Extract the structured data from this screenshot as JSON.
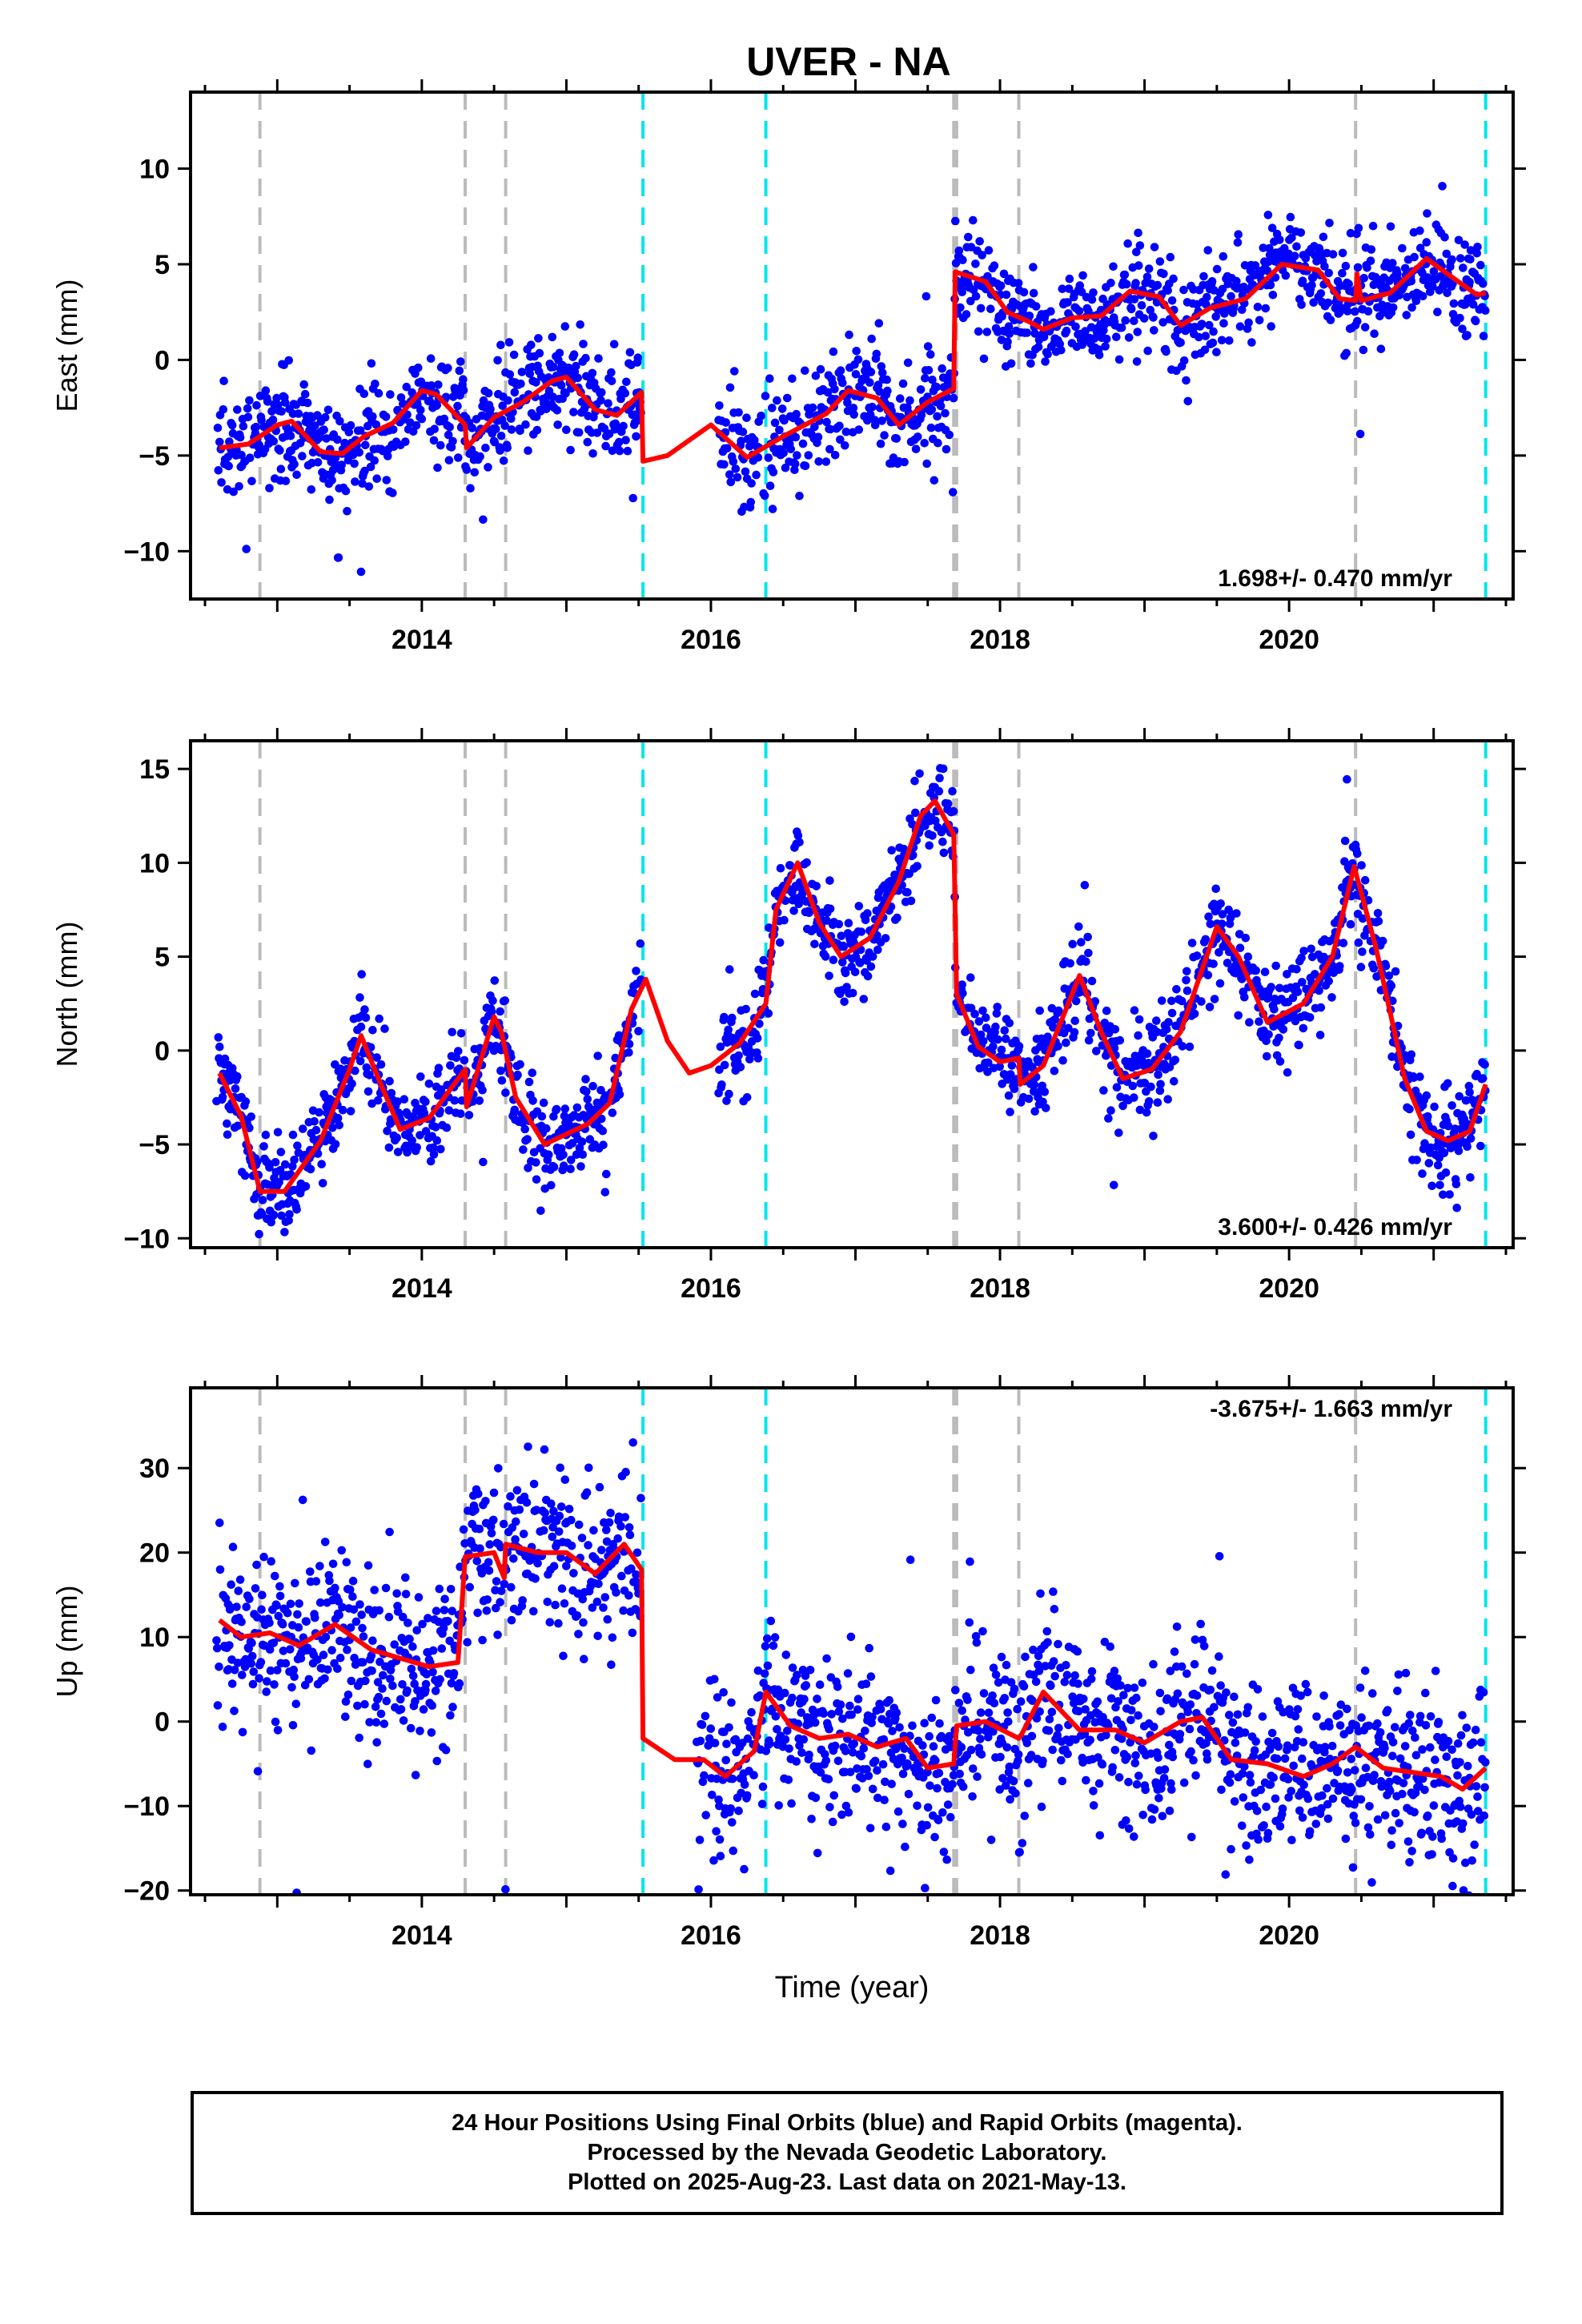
{
  "title": "UVER - NA",
  "colors": {
    "data": "#0000ff",
    "model": "#ff0000",
    "gray_line": "#bbbbbb",
    "cyan_line": "#00e5ee",
    "frame": "#000000"
  },
  "footer": {
    "line1": "24 Hour Positions Using Final Orbits (blue) and Rapid Orbits (magenta).",
    "line2": "Processed by the Nevada Geodetic Laboratory.",
    "line3": "Plotted on 2025-Aug-23. Last data on 2021-May-13."
  },
  "chart_data": [
    {
      "type": "scatter",
      "title": "UVER - NA",
      "xlabel": "",
      "ylabel": "East (mm)",
      "xlim": [
        2012.4,
        2021.55
      ],
      "ylim": [
        -12.5,
        14
      ],
      "xticks": [
        2014,
        2016,
        2018,
        2020
      ],
      "yticks": [
        -10,
        -5,
        0,
        5,
        10
      ],
      "rate_label": "1.698+/- 0.470 mm/yr",
      "rate_position": "bottom-right",
      "data_gap": [
        2015.52,
        2016.05
      ],
      "gray_lines": [
        2012.88,
        2014.3,
        2014.58,
        2017.68,
        2017.7,
        2018.13,
        2020.46
      ],
      "cyan_lines": [
        2015.53,
        2016.38,
        2021.36
      ],
      "model": [
        [
          2012.6,
          -4.6
        ],
        [
          2012.8,
          -4.4
        ],
        [
          2013.0,
          -3.4
        ],
        [
          2013.1,
          -3.2
        ],
        [
          2013.3,
          -4.8
        ],
        [
          2013.45,
          -4.9
        ],
        [
          2013.6,
          -4.0
        ],
        [
          2013.8,
          -3.3
        ],
        [
          2014.0,
          -1.6
        ],
        [
          2014.1,
          -1.8
        ],
        [
          2014.3,
          -3.4
        ],
        [
          2014.31,
          -4.6
        ],
        [
          2014.5,
          -3.0
        ],
        [
          2014.7,
          -2.2
        ],
        [
          2014.9,
          -1.1
        ],
        [
          2015.0,
          -0.9
        ],
        [
          2015.2,
          -2.6
        ],
        [
          2015.35,
          -2.9
        ],
        [
          2015.52,
          -1.7
        ],
        [
          2015.53,
          -5.3
        ],
        [
          2015.7,
          -5.0
        ],
        [
          2016.0,
          -3.4
        ],
        [
          2016.25,
          -5.1
        ],
        [
          2016.5,
          -4.0
        ],
        [
          2016.8,
          -2.8
        ],
        [
          2016.95,
          -1.6
        ],
        [
          2017.15,
          -2.0
        ],
        [
          2017.3,
          -3.4
        ],
        [
          2017.5,
          -2.2
        ],
        [
          2017.68,
          -1.5
        ],
        [
          2017.69,
          4.6
        ],
        [
          2017.9,
          4.1
        ],
        [
          2018.05,
          2.5
        ],
        [
          2018.2,
          2.0
        ],
        [
          2018.3,
          1.6
        ],
        [
          2018.5,
          2.2
        ],
        [
          2018.7,
          2.3
        ],
        [
          2018.9,
          3.6
        ],
        [
          2019.1,
          3.3
        ],
        [
          2019.25,
          1.8
        ],
        [
          2019.45,
          2.7
        ],
        [
          2019.7,
          3.2
        ],
        [
          2019.95,
          5.0
        ],
        [
          2020.2,
          4.7
        ],
        [
          2020.35,
          3.2
        ],
        [
          2020.46,
          3.1
        ],
        [
          2020.47,
          4.5
        ],
        [
          2020.5,
          3.1
        ],
        [
          2020.7,
          3.5
        ],
        [
          2020.95,
          5.3
        ],
        [
          2021.15,
          4.2
        ],
        [
          2021.3,
          3.4
        ],
        [
          2021.36,
          3.5
        ]
      ]
    },
    {
      "type": "scatter",
      "xlabel": "",
      "ylabel": "North (mm)",
      "xlim": [
        2012.4,
        2021.55
      ],
      "ylim": [
        -10.5,
        16.5
      ],
      "xticks": [
        2014,
        2016,
        2018,
        2020
      ],
      "yticks": [
        -10,
        -5,
        0,
        5,
        10,
        15
      ],
      "rate_label": "3.600+/- 0.426 mm/yr",
      "rate_position": "bottom-right",
      "data_gap": [
        2015.52,
        2016.05
      ],
      "gray_lines": [
        2012.88,
        2014.3,
        2014.58,
        2017.68,
        2017.7,
        2018.13,
        2020.46
      ],
      "cyan_lines": [
        2015.53,
        2016.38,
        2021.36
      ],
      "model": [
        [
          2012.6,
          -1.2
        ],
        [
          2012.75,
          -3.5
        ],
        [
          2012.88,
          -7.5
        ],
        [
          2013.05,
          -7.5
        ],
        [
          2013.3,
          -4.8
        ],
        [
          2013.5,
          -1.0
        ],
        [
          2013.58,
          0.8
        ],
        [
          2013.7,
          -1.5
        ],
        [
          2013.85,
          -4.2
        ],
        [
          2014.05,
          -3.6
        ],
        [
          2014.3,
          -1.0
        ],
        [
          2014.31,
          -3.0
        ],
        [
          2014.5,
          1.8
        ],
        [
          2014.55,
          1.0
        ],
        [
          2014.65,
          -2.5
        ],
        [
          2014.85,
          -5.0
        ],
        [
          2015.15,
          -3.9
        ],
        [
          2015.3,
          -2.8
        ],
        [
          2015.45,
          2.2
        ],
        [
          2015.55,
          3.8
        ],
        [
          2015.7,
          0.5
        ],
        [
          2015.85,
          -1.2
        ],
        [
          2016.0,
          -0.8
        ],
        [
          2016.2,
          0.4
        ],
        [
          2016.38,
          2.5
        ],
        [
          2016.45,
          7.5
        ],
        [
          2016.6,
          10.0
        ],
        [
          2016.75,
          6.8
        ],
        [
          2016.9,
          5.0
        ],
        [
          2017.1,
          6.0
        ],
        [
          2017.3,
          9.0
        ],
        [
          2017.45,
          12.5
        ],
        [
          2017.55,
          13.3
        ],
        [
          2017.68,
          11.5
        ],
        [
          2017.7,
          3.0
        ],
        [
          2017.85,
          0.2
        ],
        [
          2018.0,
          -0.6
        ],
        [
          2018.13,
          -0.4
        ],
        [
          2018.14,
          -1.8
        ],
        [
          2018.3,
          -0.8
        ],
        [
          2018.55,
          4.0
        ],
        [
          2018.7,
          1.0
        ],
        [
          2018.85,
          -1.5
        ],
        [
          2019.05,
          -1.0
        ],
        [
          2019.25,
          1.0
        ],
        [
          2019.5,
          6.6
        ],
        [
          2019.65,
          5.0
        ],
        [
          2019.85,
          1.5
        ],
        [
          2020.1,
          2.5
        ],
        [
          2020.3,
          5.0
        ],
        [
          2020.45,
          9.8
        ],
        [
          2020.6,
          5.5
        ],
        [
          2020.8,
          -1.5
        ],
        [
          2020.95,
          -4.3
        ],
        [
          2021.1,
          -4.8
        ],
        [
          2021.25,
          -4.3
        ],
        [
          2021.36,
          -1.8
        ]
      ]
    },
    {
      "type": "scatter",
      "xlabel": "Time (year)",
      "ylabel": "Up (mm)",
      "xlim": [
        2012.4,
        2021.55
      ],
      "ylim": [
        -20.5,
        39.5
      ],
      "xticks": [
        2014,
        2016,
        2018,
        2020
      ],
      "yticks": [
        -20,
        -10,
        0,
        10,
        20,
        30
      ],
      "rate_label": "-3.675+/- 1.663 mm/yr",
      "rate_position": "top-right",
      "data_gap": [
        2015.52,
        2015.9
      ],
      "gray_lines": [
        2012.88,
        2014.3,
        2014.58,
        2017.68,
        2017.7,
        2018.13,
        2020.46
      ],
      "cyan_lines": [
        2015.53,
        2016.38,
        2021.36
      ],
      "model": [
        [
          2012.6,
          12.0
        ],
        [
          2012.75,
          10.0
        ],
        [
          2012.95,
          10.5
        ],
        [
          2013.15,
          9.0
        ],
        [
          2013.4,
          11.5
        ],
        [
          2013.65,
          8.5
        ],
        [
          2013.85,
          7.5
        ],
        [
          2014.05,
          6.5
        ],
        [
          2014.25,
          7.0
        ],
        [
          2014.3,
          19.5
        ],
        [
          2014.5,
          20.0
        ],
        [
          2014.57,
          17.0
        ],
        [
          2014.58,
          21.0
        ],
        [
          2014.8,
          20.0
        ],
        [
          2015.0,
          20.0
        ],
        [
          2015.2,
          17.5
        ],
        [
          2015.4,
          21.0
        ],
        [
          2015.52,
          18.0
        ],
        [
          2015.53,
          -2.0
        ],
        [
          2015.75,
          -4.5
        ],
        [
          2015.95,
          -4.5
        ],
        [
          2016.1,
          -6.5
        ],
        [
          2016.3,
          -3.5
        ],
        [
          2016.38,
          3.5
        ],
        [
          2016.55,
          -0.5
        ],
        [
          2016.75,
          -2.0
        ],
        [
          2016.95,
          -1.5
        ],
        [
          2017.15,
          -3.0
        ],
        [
          2017.35,
          -2.0
        ],
        [
          2017.5,
          -5.5
        ],
        [
          2017.68,
          -5.0
        ],
        [
          2017.7,
          -0.5
        ],
        [
          2017.9,
          0.0
        ],
        [
          2018.13,
          -2.0
        ],
        [
          2018.15,
          -1.5
        ],
        [
          2018.3,
          3.5
        ],
        [
          2018.55,
          -1.0
        ],
        [
          2018.8,
          -1.0
        ],
        [
          2019.0,
          -2.5
        ],
        [
          2019.25,
          0.0
        ],
        [
          2019.4,
          0.5
        ],
        [
          2019.6,
          -4.5
        ],
        [
          2019.85,
          -5.0
        ],
        [
          2020.1,
          -6.5
        ],
        [
          2020.3,
          -5.0
        ],
        [
          2020.46,
          -3.0
        ],
        [
          2020.65,
          -5.5
        ],
        [
          2020.85,
          -6.0
        ],
        [
          2021.05,
          -6.5
        ],
        [
          2021.2,
          -8.0
        ],
        [
          2021.36,
          -5.5
        ]
      ]
    }
  ]
}
